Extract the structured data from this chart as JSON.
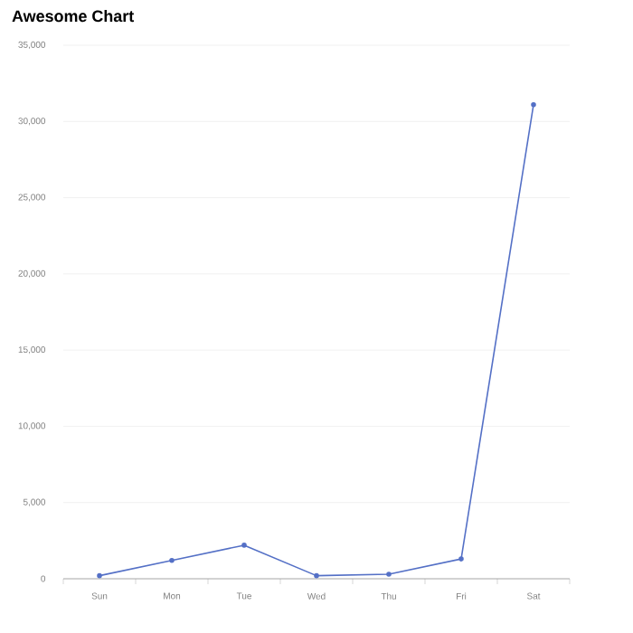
{
  "chart_data": {
    "type": "line",
    "title": "Awesome Chart",
    "categories": [
      "Sun",
      "Mon",
      "Tue",
      "Wed",
      "Thu",
      "Fri",
      "Sat"
    ],
    "series": [
      {
        "color": "#5470c6",
        "values": [
          200,
          1200,
          2200,
          200,
          300,
          1300,
          31100
        ]
      }
    ],
    "ylim": [
      0,
      35000
    ],
    "yticks": [
      {
        "value": 0,
        "label": "0"
      },
      {
        "value": 5000,
        "label": "5,000"
      },
      {
        "value": 10000,
        "label": "10,000"
      },
      {
        "value": 15000,
        "label": "15,000"
      },
      {
        "value": 20000,
        "label": "20,000"
      },
      {
        "value": 25000,
        "label": "25,000"
      },
      {
        "value": 30000,
        "label": "30,000"
      },
      {
        "value": 35000,
        "label": "35,000"
      }
    ],
    "grid": "y",
    "marker": "circle",
    "line_style": "solid"
  }
}
